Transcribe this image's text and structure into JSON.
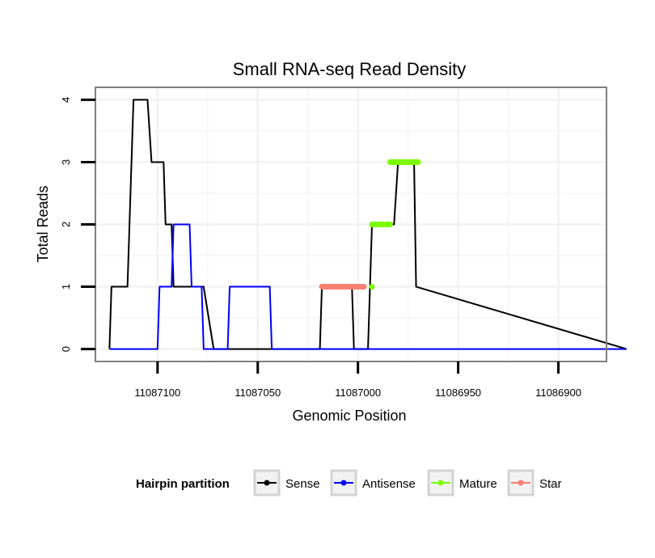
{
  "chart_data": {
    "type": "line",
    "title": "Small RNA-seq Read Density",
    "xlabel": "Genomic Position",
    "ylabel": "Total Reads",
    "x_reversed": true,
    "xlim": [
      11087131,
      11086876
    ],
    "ylim": [
      -0.2,
      4.2
    ],
    "x_ticks": [
      11087100,
      11087050,
      11087000,
      11086950,
      11086900
    ],
    "x_tick_labels": [
      "11087100",
      "11087050",
      "11087000",
      "11086950",
      "11086900"
    ],
    "y_ticks": [
      0,
      1,
      2,
      3,
      4
    ],
    "y_tick_labels": [
      "0",
      "1",
      "2",
      "3",
      "4"
    ],
    "grid": true,
    "legend": {
      "title": "Hairpin partition",
      "position": "bottom",
      "entries": [
        {
          "label": "Sense",
          "color": "#000000"
        },
        {
          "label": "Antisense",
          "color": "#0000ff"
        },
        {
          "label": "Mature",
          "color": "#7cfc00"
        },
        {
          "label": "Star",
          "color": "#fa8072"
        }
      ]
    },
    "series": [
      {
        "name": "Sense",
        "color": "#000000",
        "x": [
          11087124,
          11087123,
          11087115,
          11087112,
          11087105,
          11087103,
          11087097,
          11087096,
          11087093,
          11087092,
          11087089,
          11087078,
          11087077,
          11087072,
          11087071,
          11087050,
          11087035,
          11087019,
          11087018,
          11087003,
          11087002,
          11086995,
          11086993,
          11086982,
          11086980,
          11086972,
          11086971,
          11086866
        ],
        "y": [
          0,
          1,
          1,
          4,
          4,
          3,
          3,
          2,
          2,
          1,
          1,
          1,
          1,
          0,
          0,
          0,
          0,
          0,
          1,
          1,
          0,
          0,
          2,
          2,
          3,
          3,
          1,
          0
        ]
      },
      {
        "name": "Antisense",
        "color": "#0000ff",
        "x": [
          11087124,
          11087100,
          11087099,
          11087093,
          11087092,
          11087084,
          11087083,
          11087078,
          11087077,
          11087065,
          11087064,
          11087044,
          11087043,
          11086866
        ],
        "y": [
          0,
          0,
          1,
          1,
          2,
          2,
          1,
          1,
          0,
          0,
          1,
          1,
          0,
          0
        ]
      },
      {
        "name": "Mature",
        "color": "#7cfc00",
        "segments": [
          {
            "x_start": 11086993,
            "x_end": 11086993,
            "y": 1
          },
          {
            "x_start": 11086993,
            "x_end": 11086984,
            "y": 2
          },
          {
            "x_start": 11086984,
            "x_end": 11086970,
            "y": 3
          }
        ]
      },
      {
        "name": "Star",
        "color": "#fa8072",
        "segments": [
          {
            "x_start": 11087018,
            "x_end": 11086997,
            "y": 1
          }
        ]
      }
    ]
  }
}
